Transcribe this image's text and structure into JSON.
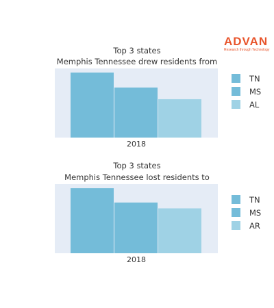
{
  "logo": {
    "name": "ADVAN",
    "tagline": "Research through Technology"
  },
  "colors": {
    "plot_bg": "#e5ecf6",
    "text": "#333333",
    "brand": "#e8542b"
  },
  "chart_data": [
    {
      "type": "bar",
      "title": "Top 3 states",
      "subtitle": "Memphis Tennessee drew residents from",
      "categories": [
        "2018"
      ],
      "series": [
        {
          "name": "TN",
          "values": [
            100
          ],
          "color": "#74bcd9"
        },
        {
          "name": "MS",
          "values": [
            77
          ],
          "color": "#74bcd9"
        },
        {
          "name": "AL",
          "values": [
            59
          ],
          "color": "#9fd2e5"
        }
      ],
      "xlabel": "",
      "ylabel": "",
      "ylim": [
        0,
        100
      ],
      "grid": false,
      "legend": "right"
    },
    {
      "type": "bar",
      "title": "Top 3 states",
      "subtitle": "Memphis Tennessee lost residents to",
      "categories": [
        "2018"
      ],
      "series": [
        {
          "name": "TN",
          "values": [
            100
          ],
          "color": "#74bcd9"
        },
        {
          "name": "MS",
          "values": [
            78
          ],
          "color": "#74bcd9"
        },
        {
          "name": "AR",
          "values": [
            69
          ],
          "color": "#9fd2e5"
        }
      ],
      "xlabel": "",
      "ylabel": "",
      "ylim": [
        0,
        100
      ],
      "grid": false,
      "legend": "right"
    }
  ]
}
